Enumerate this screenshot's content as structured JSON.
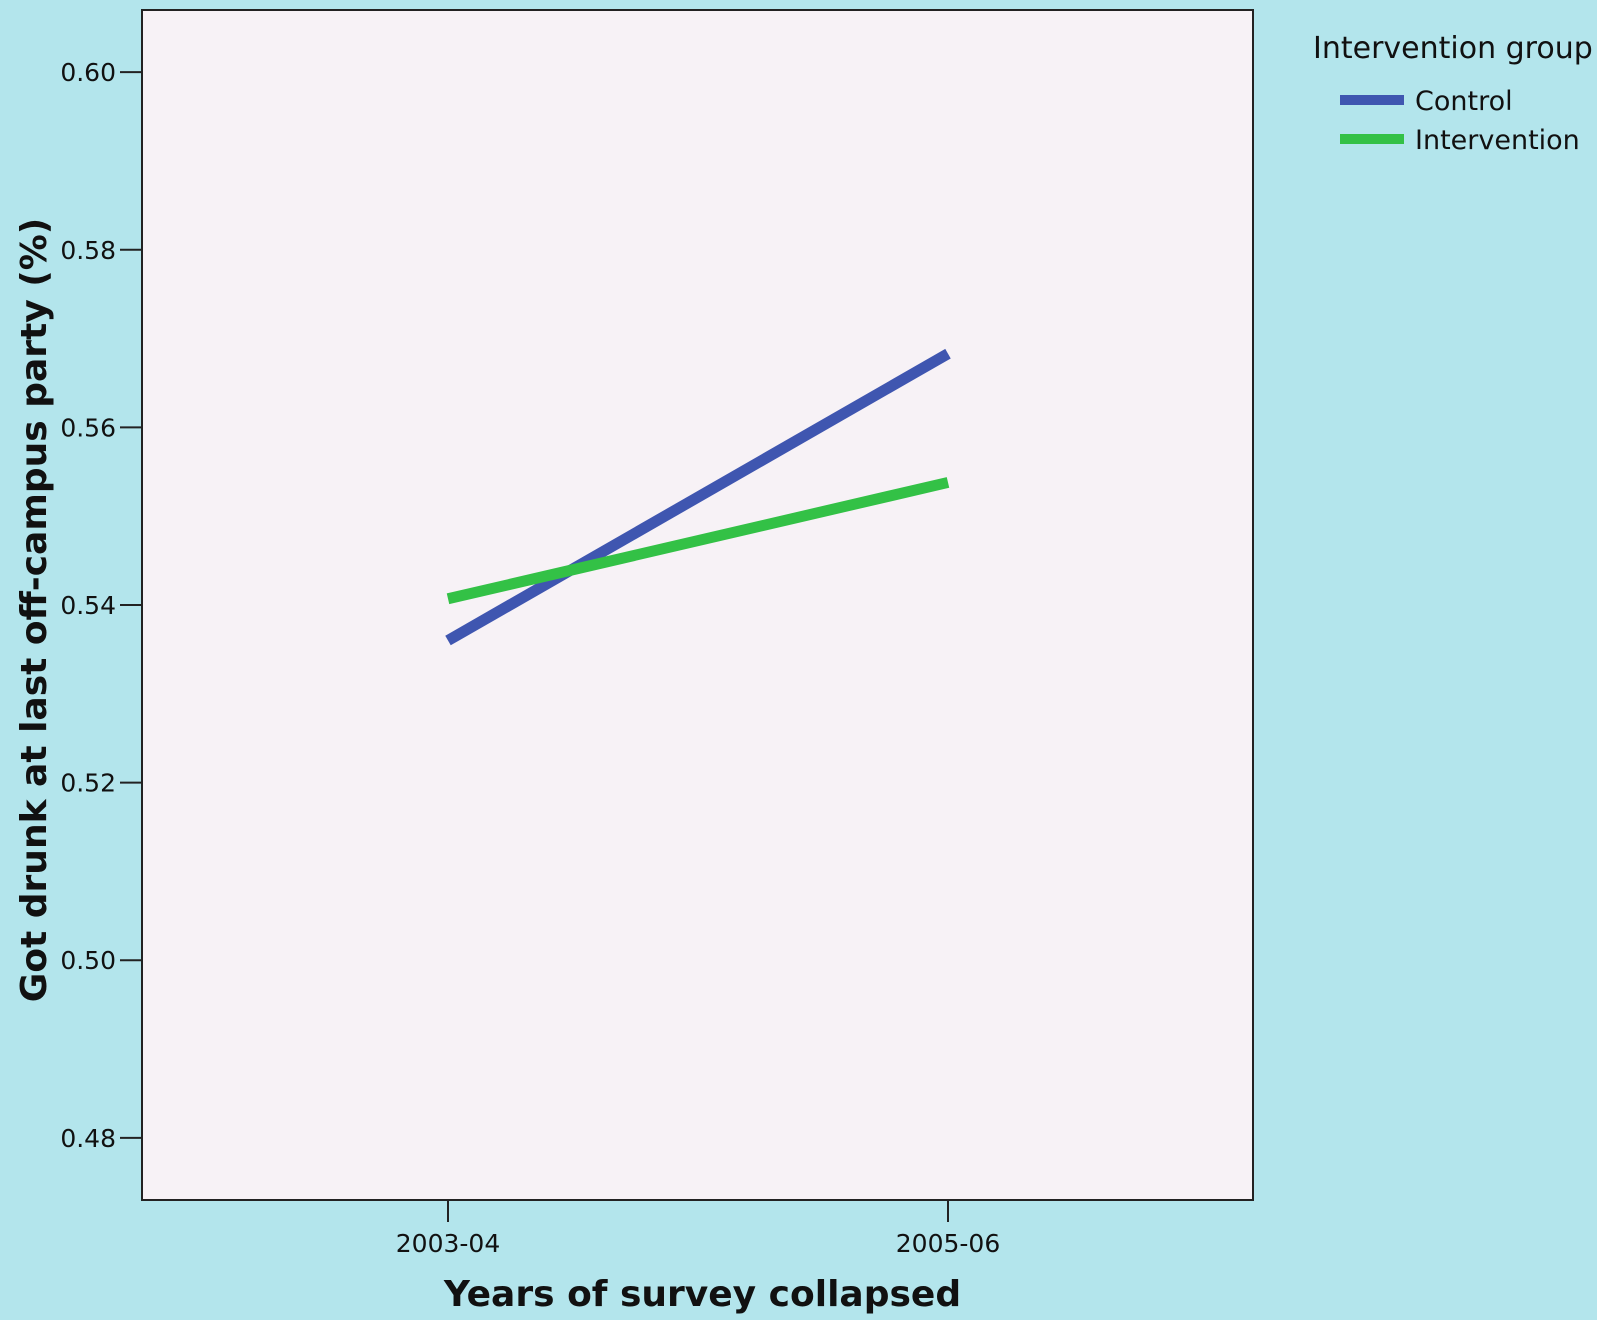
{
  "chart_data": {
    "type": "line",
    "title": "",
    "xlabel": "Years of survey collapsed",
    "ylabel": "Got drunk at last off-campus party (%)",
    "categories": [
      "2003-04",
      "2005-06"
    ],
    "ylim": [
      0.473,
      0.607
    ],
    "yticks": [
      0.48,
      0.5,
      0.52,
      0.54,
      0.56,
      0.58,
      0.6
    ],
    "ytick_labels": [
      "0.48",
      "0.50",
      "0.52",
      "0.54",
      "0.56",
      "0.58",
      "0.60"
    ],
    "grid": false,
    "legend": {
      "title": "Intervention group",
      "placement": "outside-top-right"
    },
    "series": [
      {
        "name": "Control",
        "color": "#3f56b0",
        "values": [
          0.536,
          0.5683
        ]
      },
      {
        "name": "Intervention",
        "color": "#33c146",
        "values": [
          0.5407,
          0.5538
        ]
      }
    ]
  },
  "colors": {
    "page_background": "#b3e5ec",
    "plot_background": "#f7f2f6",
    "axis": "#222222"
  }
}
